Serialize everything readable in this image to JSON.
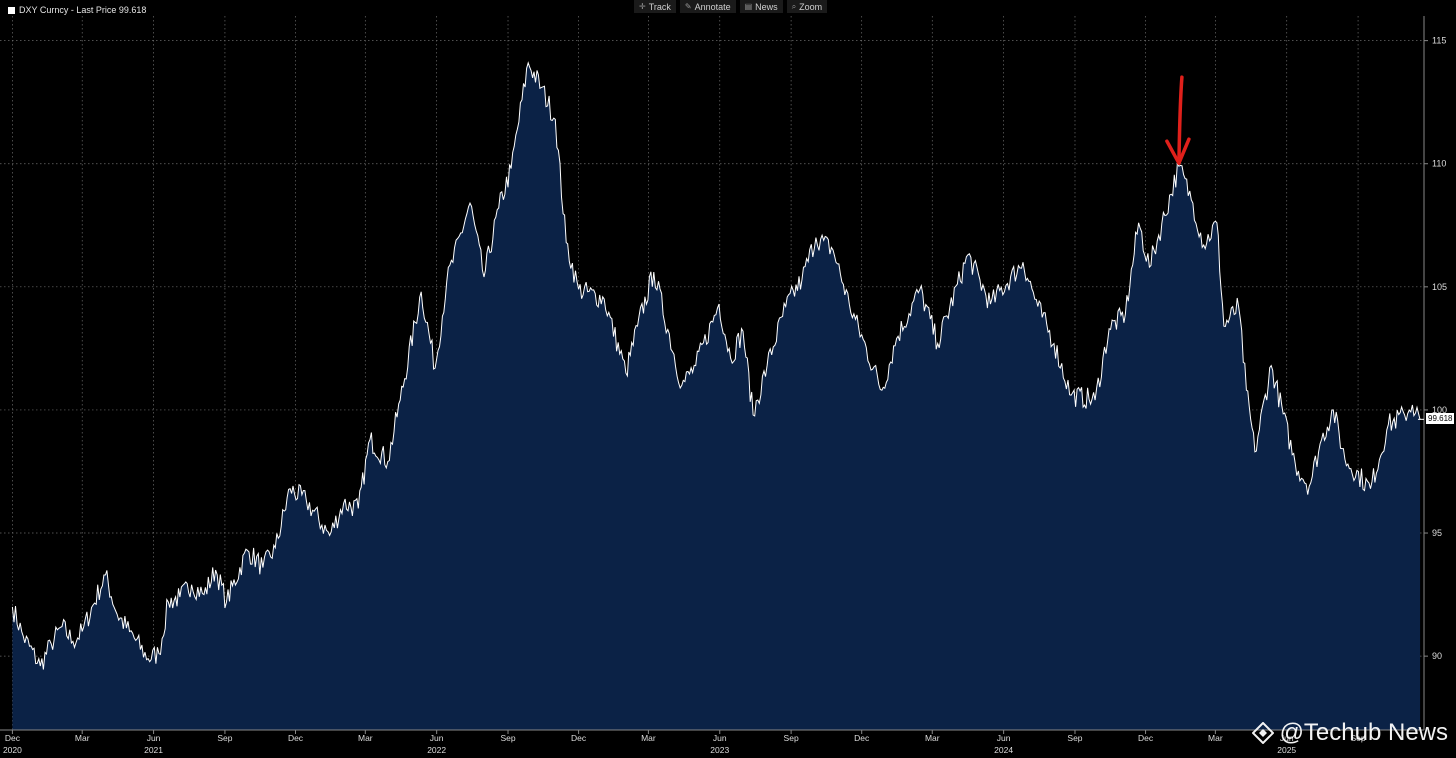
{
  "toolbar": {
    "track_label": "Track",
    "annotate_label": "Annotate",
    "news_label": "News",
    "zoom_label": "Zoom"
  },
  "legend": {
    "text": "DXY Curncy - Last Price 99.618"
  },
  "watermark": {
    "text": "@Techub News"
  },
  "colors": {
    "background": "#000000",
    "area_fill": "#0b2246",
    "line": "#ffffff",
    "grid": "#6b6b6b",
    "annotation": "#e0201b"
  },
  "chart_data": {
    "type": "area",
    "series": [
      {
        "name": "DXY Curncy - Last Price",
        "points": [
          [
            "2020-12-01",
            92.0
          ],
          [
            "2020-12-15",
            90.8
          ],
          [
            "2021-01-06",
            89.6
          ],
          [
            "2021-01-20",
            90.5
          ],
          [
            "2021-02-03",
            91.2
          ],
          [
            "2021-02-17",
            90.6
          ],
          [
            "2021-03-01",
            91.0
          ],
          [
            "2021-03-31",
            93.3
          ],
          [
            "2021-04-15",
            91.7
          ],
          [
            "2021-05-01",
            91.0
          ],
          [
            "2021-05-25",
            89.9
          ],
          [
            "2021-06-08",
            90.1
          ],
          [
            "2021-06-20",
            92.2
          ],
          [
            "2021-07-05",
            92.4
          ],
          [
            "2021-07-20",
            92.9
          ],
          [
            "2021-08-05",
            92.5
          ],
          [
            "2021-08-20",
            93.5
          ],
          [
            "2021-09-03",
            92.2
          ],
          [
            "2021-09-30",
            94.3
          ],
          [
            "2021-10-20",
            93.6
          ],
          [
            "2021-11-05",
            94.4
          ],
          [
            "2021-11-24",
            96.8
          ],
          [
            "2021-12-15",
            96.3
          ],
          [
            "2022-01-14",
            94.9
          ],
          [
            "2022-02-01",
            96.2
          ],
          [
            "2022-02-20",
            96.0
          ],
          [
            "2022-03-07",
            98.8
          ],
          [
            "2022-03-30",
            97.9
          ],
          [
            "2022-04-15",
            100.4
          ],
          [
            "2022-05-12",
            104.8
          ],
          [
            "2022-05-30",
            101.7
          ],
          [
            "2022-06-14",
            105.2
          ],
          [
            "2022-07-14",
            108.4
          ],
          [
            "2022-08-01",
            105.4
          ],
          [
            "2022-08-20",
            108.2
          ],
          [
            "2022-09-05",
            109.8
          ],
          [
            "2022-09-27",
            114.1
          ],
          [
            "2022-10-14",
            113.1
          ],
          [
            "2022-11-01",
            111.8
          ],
          [
            "2022-11-15",
            106.8
          ],
          [
            "2022-12-01",
            104.9
          ],
          [
            "2023-01-03",
            104.5
          ],
          [
            "2023-01-31",
            101.5
          ],
          [
            "2023-02-15",
            103.4
          ],
          [
            "2023-03-08",
            105.6
          ],
          [
            "2023-04-13",
            101.0
          ],
          [
            "2023-05-01",
            101.8
          ],
          [
            "2023-05-31",
            104.3
          ],
          [
            "2023-06-15",
            102.1
          ],
          [
            "2023-07-01",
            103.2
          ],
          [
            "2023-07-14",
            99.8
          ],
          [
            "2023-08-01",
            101.8
          ],
          [
            "2023-08-25",
            104.2
          ],
          [
            "2023-09-15",
            105.3
          ],
          [
            "2023-10-03",
            107.0
          ],
          [
            "2023-10-25",
            106.5
          ],
          [
            "2023-11-15",
            104.3
          ],
          [
            "2023-12-27",
            100.8
          ],
          [
            "2024-01-15",
            102.9
          ],
          [
            "2024-02-14",
            104.9
          ],
          [
            "2024-03-08",
            102.7
          ],
          [
            "2024-04-16",
            106.3
          ],
          [
            "2024-05-15",
            104.3
          ],
          [
            "2024-06-26",
            106.0
          ],
          [
            "2024-07-15",
            104.2
          ],
          [
            "2024-08-05",
            102.7
          ],
          [
            "2024-08-27",
            100.6
          ],
          [
            "2024-09-27",
            100.4
          ],
          [
            "2024-10-15",
            103.3
          ],
          [
            "2024-11-05",
            103.9
          ],
          [
            "2024-11-22",
            107.6
          ],
          [
            "2024-12-06",
            105.8
          ],
          [
            "2025-01-13",
            109.9
          ],
          [
            "2025-01-31",
            108.4
          ],
          [
            "2025-02-14",
            106.7
          ],
          [
            "2025-03-03",
            107.6
          ],
          [
            "2025-03-12",
            103.4
          ],
          [
            "2025-03-31",
            104.2
          ],
          [
            "2025-04-10",
            100.8
          ],
          [
            "2025-04-21",
            98.3
          ],
          [
            "2025-05-12",
            101.8
          ],
          [
            "2025-06-12",
            97.8
          ],
          [
            "2025-06-30",
            96.9
          ],
          [
            "2025-07-16",
            98.8
          ],
          [
            "2025-07-31",
            100.0
          ],
          [
            "2025-08-15",
            98.0
          ],
          [
            "2025-09-17",
            96.8
          ],
          [
            "2025-10-10",
            99.4
          ],
          [
            "2025-10-31",
            99.8
          ],
          [
            "2025-11-10",
            100.2
          ],
          [
            "2025-11-20",
            99.6
          ]
        ]
      }
    ],
    "last_price": 99.618,
    "last_price_label": "99.618",
    "x_range": [
      "2020-11-15",
      "2025-11-25"
    ],
    "ylim": [
      87.0,
      116.0
    ],
    "y_ticks": [
      90,
      95,
      100,
      105,
      110,
      115
    ],
    "x_ticks": [
      {
        "date": "2020-12-01",
        "label": "Dec",
        "year": "2020"
      },
      {
        "date": "2021-03-01",
        "label": "Mar",
        "year": ""
      },
      {
        "date": "2021-06-01",
        "label": "Jun",
        "year": "2021"
      },
      {
        "date": "2021-09-01",
        "label": "Sep",
        "year": ""
      },
      {
        "date": "2021-12-01",
        "label": "Dec",
        "year": ""
      },
      {
        "date": "2022-03-01",
        "label": "Mar",
        "year": ""
      },
      {
        "date": "2022-06-01",
        "label": "Jun",
        "year": "2022"
      },
      {
        "date": "2022-09-01",
        "label": "Sep",
        "year": ""
      },
      {
        "date": "2022-12-01",
        "label": "Dec",
        "year": ""
      },
      {
        "date": "2023-03-01",
        "label": "Mar",
        "year": ""
      },
      {
        "date": "2023-06-01",
        "label": "Jun",
        "year": "2023"
      },
      {
        "date": "2023-09-01",
        "label": "Sep",
        "year": ""
      },
      {
        "date": "2023-12-01",
        "label": "Dec",
        "year": ""
      },
      {
        "date": "2024-03-01",
        "label": "Mar",
        "year": ""
      },
      {
        "date": "2024-06-01",
        "label": "Jun",
        "year": "2024"
      },
      {
        "date": "2024-09-01",
        "label": "Sep",
        "year": ""
      },
      {
        "date": "2024-12-01",
        "label": "Dec",
        "year": ""
      },
      {
        "date": "2025-03-01",
        "label": "Mar",
        "year": ""
      },
      {
        "date": "2025-06-01",
        "label": "Jun",
        "year": "2025"
      },
      {
        "date": "2025-09-01",
        "label": "Sep",
        "year": ""
      }
    ],
    "annotation": {
      "type": "arrow",
      "points_to": [
        "2025-01-13",
        109.9
      ]
    },
    "grid": true
  }
}
